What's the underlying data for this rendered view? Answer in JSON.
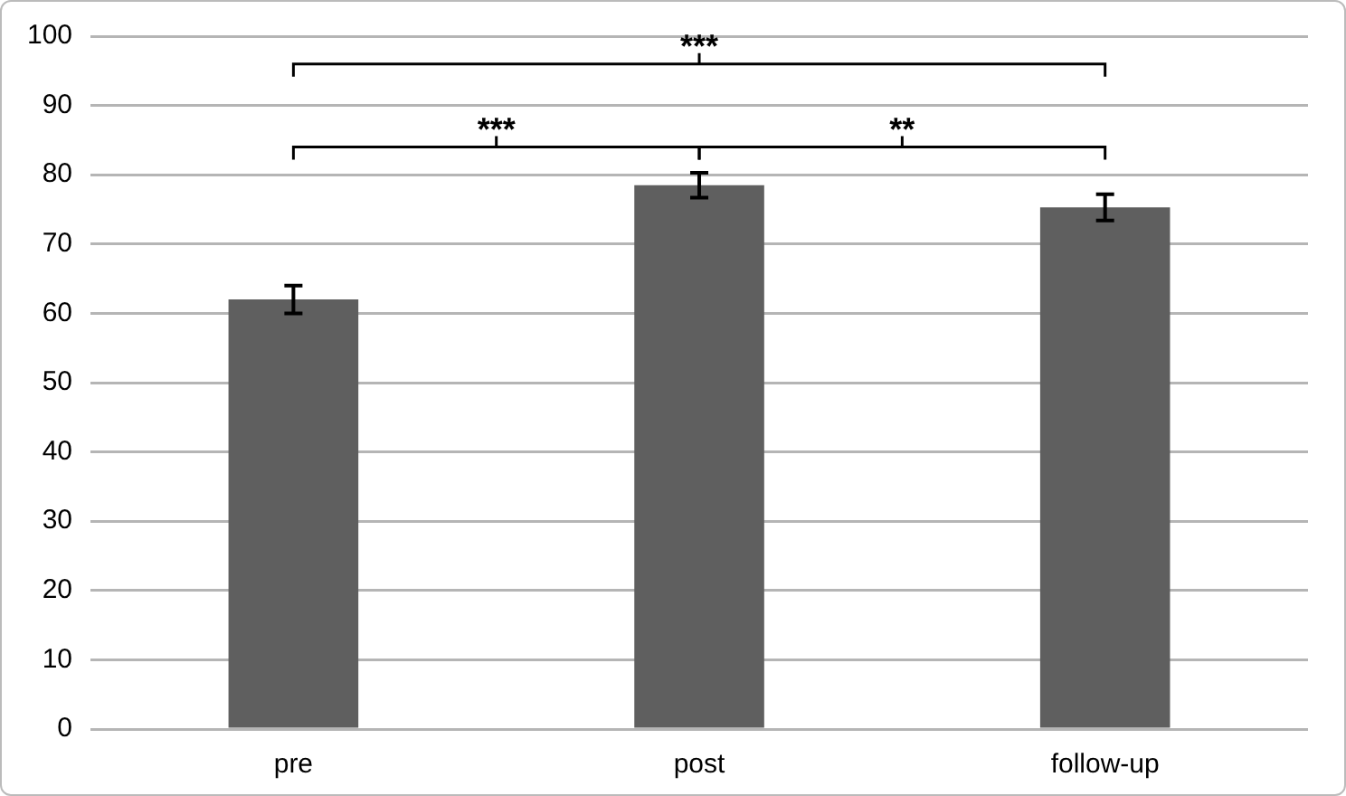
{
  "chart_data": {
    "type": "bar",
    "categories": [
      "pre",
      "post",
      "follow-up"
    ],
    "values": [
      62,
      78.5,
      75.3
    ],
    "errors": [
      2,
      1.8,
      1.9
    ],
    "color": "#5f5f5f",
    "ylim": [
      0,
      100
    ],
    "yticks": [
      0,
      10,
      20,
      30,
      40,
      50,
      60,
      70,
      80,
      90,
      100
    ],
    "grid": "y",
    "annotations": [
      "***",
      "**",
      "***"
    ]
  }
}
